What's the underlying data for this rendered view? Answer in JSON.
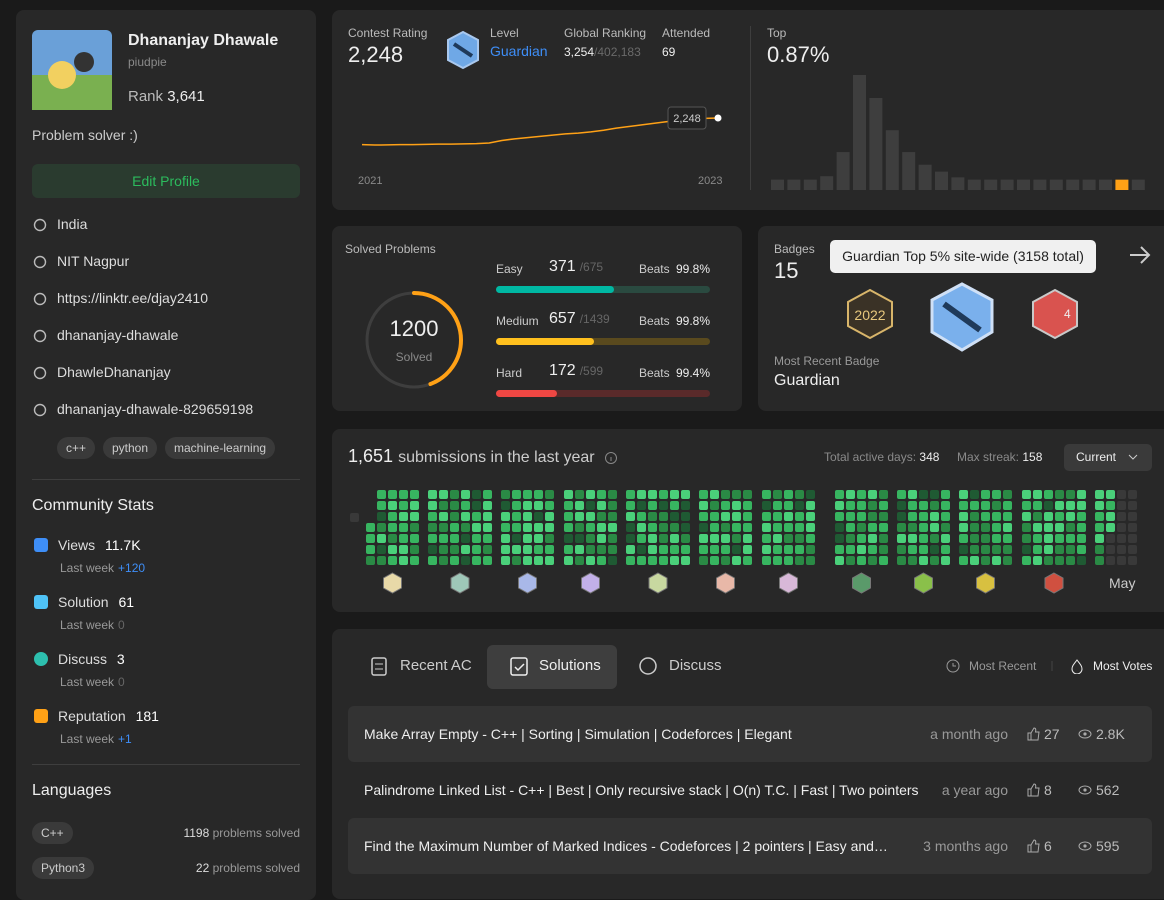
{
  "profile": {
    "name": "Dhananjay Dhawale",
    "username": "piudpie",
    "rank_label": "Rank",
    "rank": "3,641",
    "bio": "Problem solver :)",
    "edit_button": "Edit Profile",
    "info": [
      "India",
      "NIT Nagpur",
      "https://linktr.ee/djay2410",
      "dhananjay-dhawale",
      "DhawleDhananjay",
      "dhananjay-dhawale-829659198"
    ],
    "skills": [
      "c++",
      "python",
      "machine-learning"
    ]
  },
  "community_stats": {
    "title": "Community Stats",
    "items": [
      {
        "label": "Views",
        "value": "11.7K",
        "sub": "Last week",
        "delta": "+120"
      },
      {
        "label": "Solution",
        "value": "61",
        "sub": "Last week",
        "delta": "0"
      },
      {
        "label": "Discuss",
        "value": "3",
        "sub": "Last week",
        "delta": "0"
      },
      {
        "label": "Reputation",
        "value": "181",
        "sub": "Last week",
        "delta": "+1"
      }
    ]
  },
  "languages": {
    "title": "Languages",
    "items": [
      {
        "name": "C++",
        "count": "1198",
        "unit": "problems solved"
      },
      {
        "name": "Python3",
        "count": "22",
        "unit": "problems solved"
      }
    ]
  },
  "contest": {
    "rating_label": "Contest Rating",
    "rating": "2,248",
    "level_label": "Level",
    "level": "Guardian",
    "global_label": "Global Ranking",
    "global_rank": "3,254",
    "global_total": "/402,183",
    "attended_label": "Attended",
    "attended": "69",
    "tooltip": "2,248",
    "x_start": "2021",
    "x_end": "2023",
    "rating_history": [
      1600,
      1590,
      1592,
      1598,
      1600,
      1604,
      1610,
      1612,
      1618,
      1625,
      1640,
      1700,
      1740,
      1770,
      1800,
      1830,
      1860,
      1880,
      1910,
      1950,
      2000,
      2040,
      2080,
      2120,
      2160,
      2200,
      2225,
      2240,
      2248
    ]
  },
  "top": {
    "label": "Top",
    "value": "0.87%",
    "distribution": [
      9,
      9,
      9,
      12,
      33,
      100,
      80,
      52,
      33,
      22,
      16,
      11,
      9,
      9,
      9,
      9,
      9,
      9,
      9,
      9,
      9,
      9,
      9
    ],
    "highlight_index": 21
  },
  "solved": {
    "title": "Solved Problems",
    "total": 1200,
    "total_sub": "Solved",
    "beats_label": "Beats",
    "items": [
      {
        "name": "Easy",
        "solved": 371,
        "total": {
          "value": 675,
          "label": "/675"
        },
        "beats": "99.8%"
      },
      {
        "name": "Medium",
        "solved": 657,
        "total": {
          "value": 1439,
          "label": "/1439"
        },
        "beats": "99.8%"
      },
      {
        "name": "Hard",
        "solved": 172,
        "total": {
          "value": 599,
          "label": "/599"
        },
        "beats": "99.4%"
      }
    ]
  },
  "badges": {
    "title": "Badges",
    "count": "15",
    "tooltip": "Guardian Top 5% site-wide (3158 total)",
    "recent_label": "Most Recent Badge",
    "recent": "Guardian"
  },
  "submissions": {
    "count": "1,651",
    "text": "submissions in the last year",
    "active_label": "Total active days:",
    "active": "348",
    "streak_label": "Max streak:",
    "streak": "158",
    "dropdown": "Current",
    "month": "May"
  },
  "tabs": {
    "items": [
      "Recent AC",
      "Solutions",
      "Discuss"
    ],
    "sort": [
      "Most Recent",
      "Most Votes"
    ]
  },
  "solutions": [
    {
      "title": "Make Array Empty - C++ | Sorting | Simulation | Codeforces | Elegant",
      "time": "a month ago",
      "likes": "27",
      "views": "2.8K"
    },
    {
      "title": "Palindrome Linked List - C++ | Best | Only recursive stack | O(n) T.C. | Fast | Two pointers",
      "time": "a year ago",
      "likes": "8",
      "views": "562"
    },
    {
      "title": "Find the Maximum Number of Marked Indices - Codeforces | 2 pointers | Easy and…",
      "time": "3 months ago",
      "likes": "6",
      "views": "595"
    }
  ]
}
